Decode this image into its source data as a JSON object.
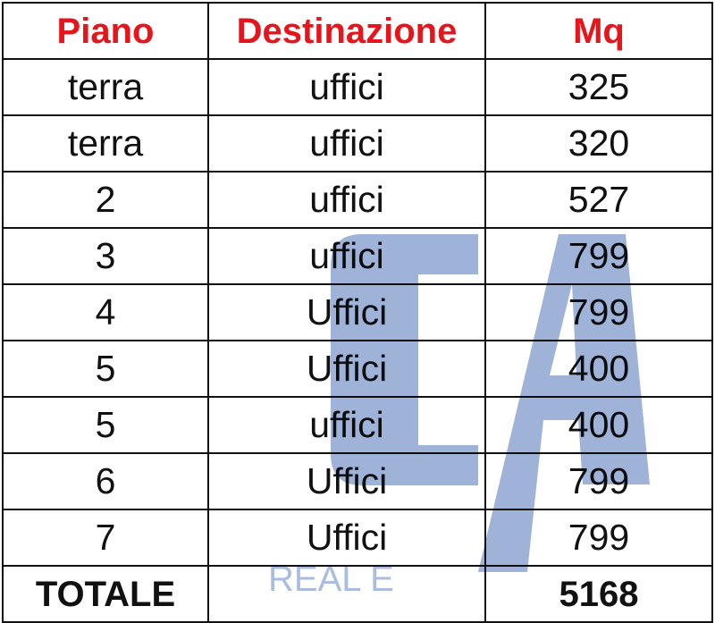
{
  "table": {
    "headers": [
      "Piano",
      "Destinazione",
      "Mq"
    ],
    "rows": [
      [
        "terra",
        "uffici",
        "325"
      ],
      [
        "terra",
        "uffici",
        "320"
      ],
      [
        "2",
        "uffici",
        "527"
      ],
      [
        "3",
        "uffici",
        "799"
      ],
      [
        "4",
        "Uffici",
        "799"
      ],
      [
        "5",
        "Uffici",
        "400"
      ],
      [
        "5",
        "uffici",
        "400"
      ],
      [
        "6",
        "Uffici",
        "799"
      ],
      [
        "7",
        "Uffici",
        "799"
      ]
    ],
    "total": {
      "label": "TOTALE",
      "value": "5168"
    }
  },
  "watermark": {
    "logo": "CA",
    "text": "REAL E",
    "color": "#9fb3d8"
  },
  "colors": {
    "header": "#e8141c",
    "text": "#111111"
  }
}
